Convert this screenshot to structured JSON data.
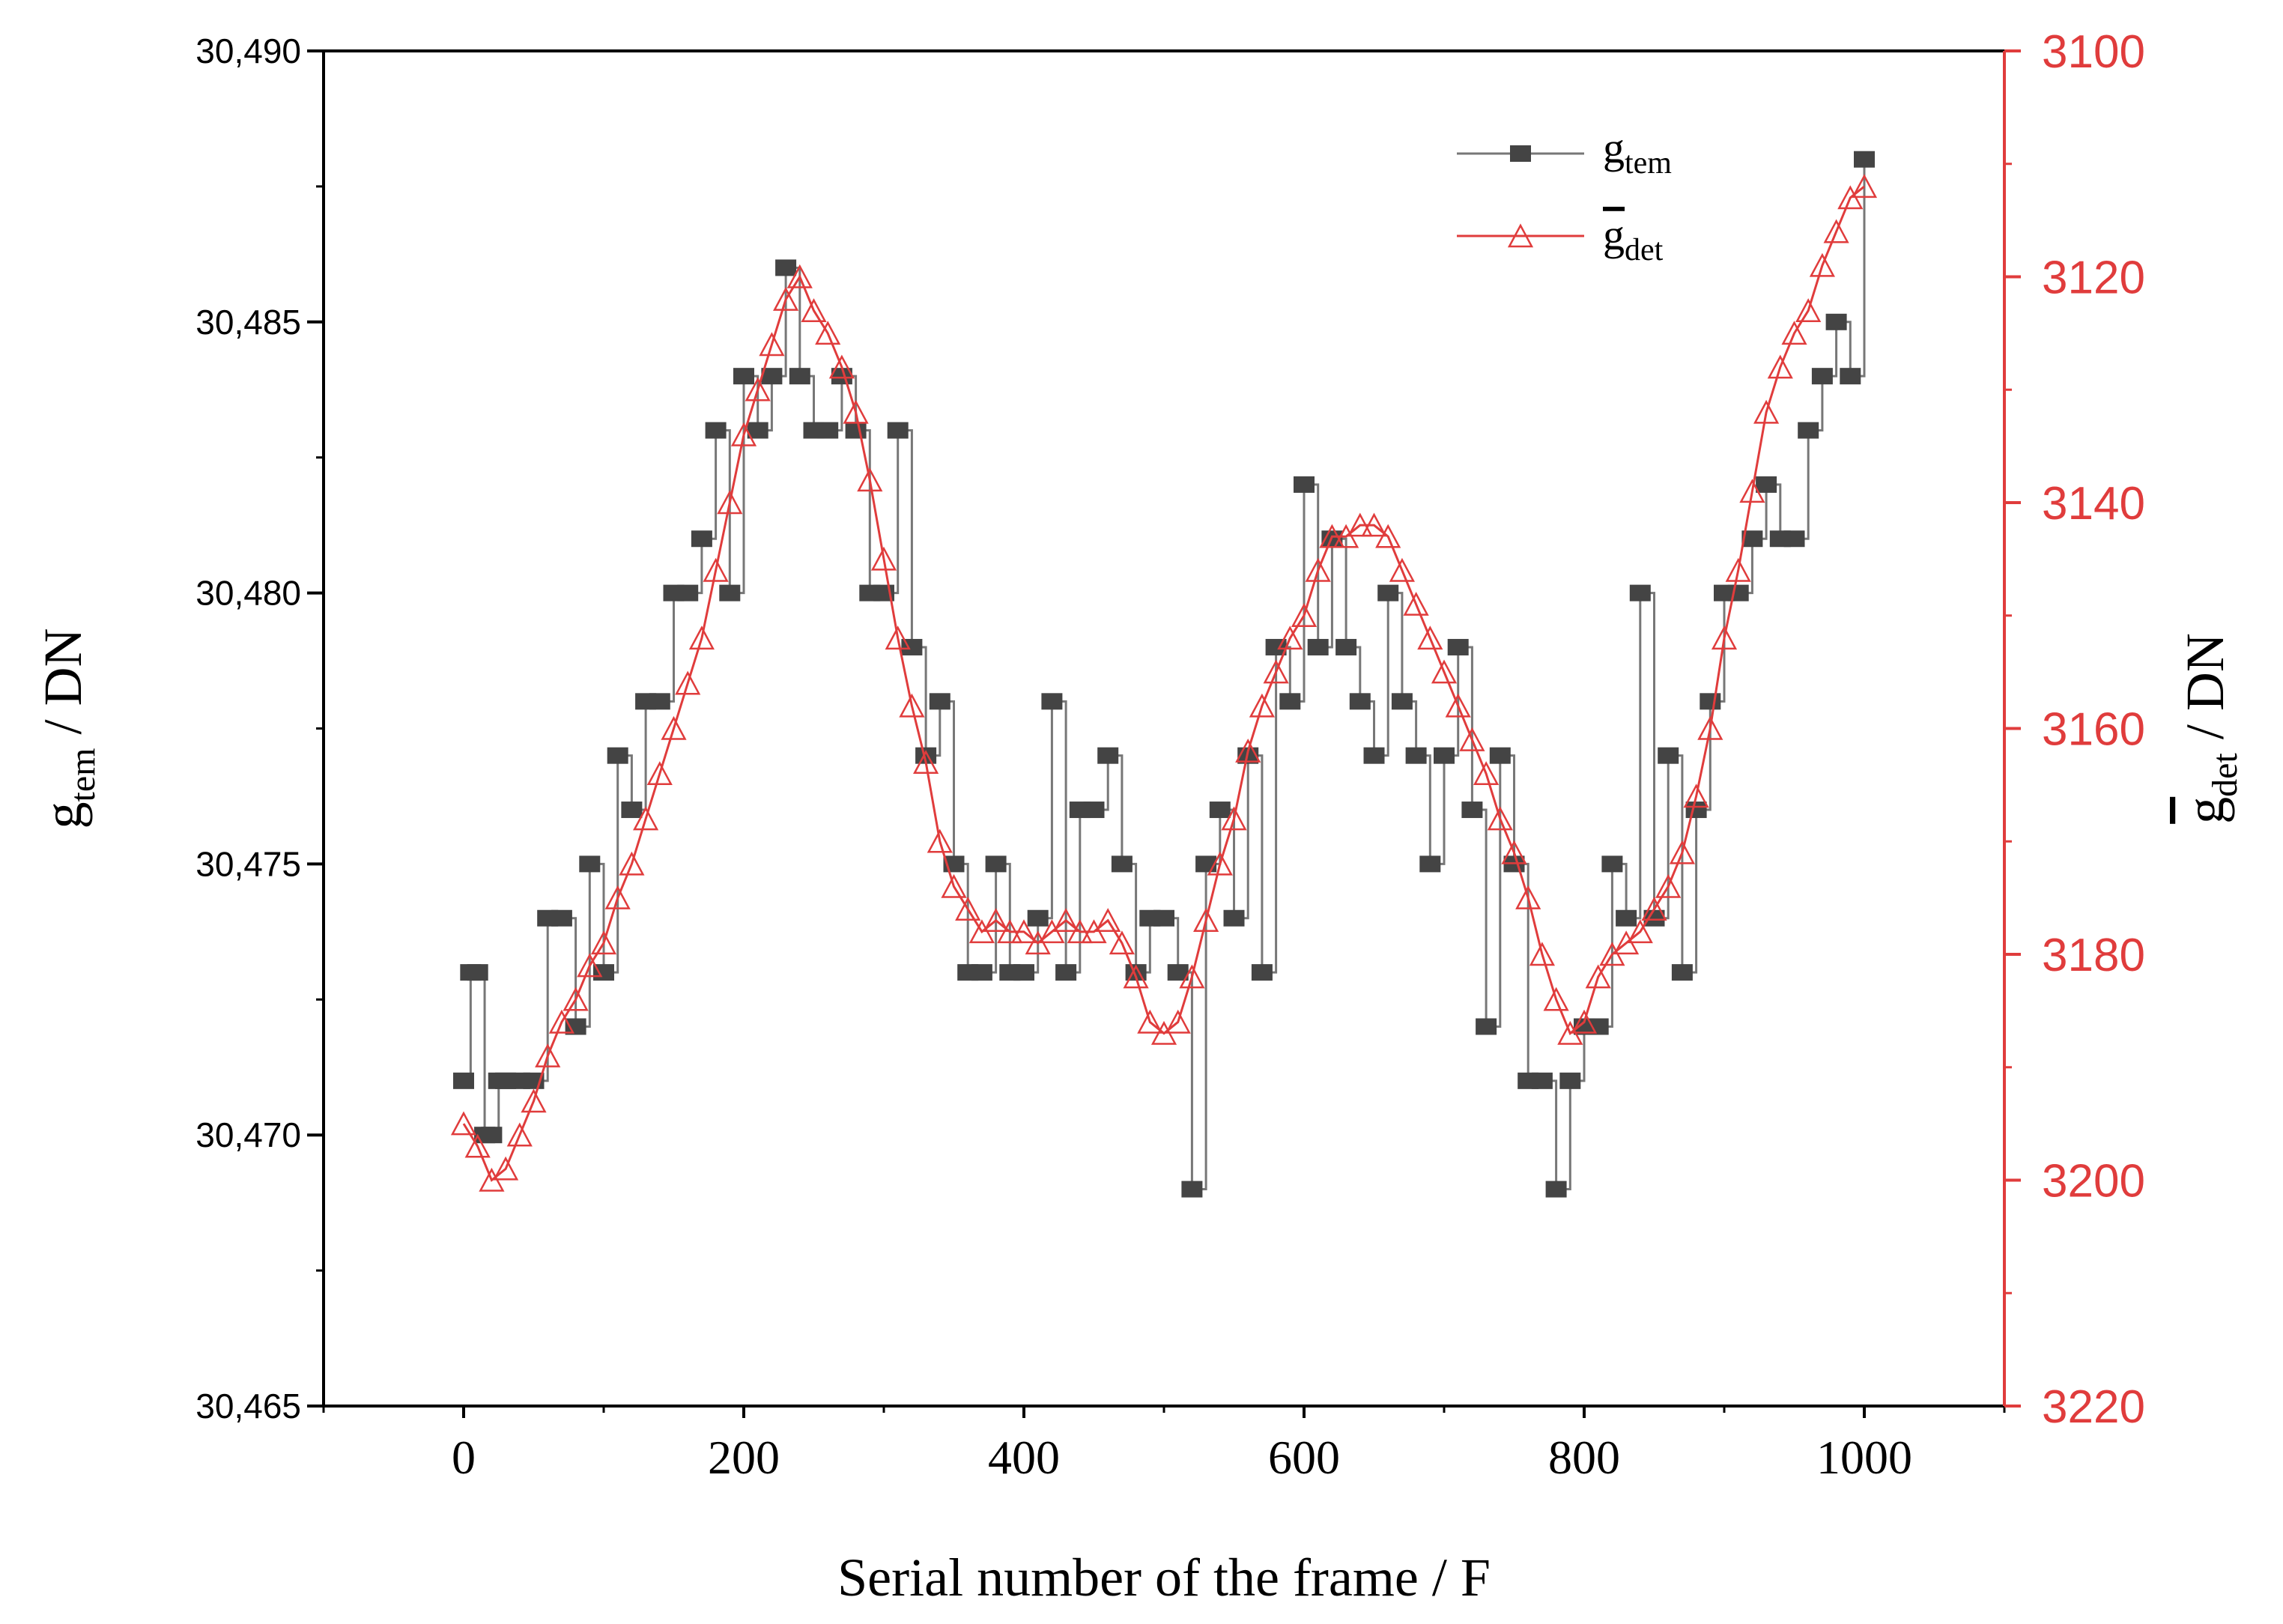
{
  "chart_data": {
    "type": "line",
    "xlabel": "Serial number of the frame / F",
    "xlim": [
      -100,
      1100
    ],
    "xticks": [
      0,
      200,
      400,
      600,
      800,
      1000
    ],
    "xtick_labels": [
      "0",
      "200",
      "400",
      "600",
      "800",
      "1000"
    ],
    "y_left": {
      "label_base": "g",
      "label_sub": "tem",
      "label_suffix": "/ DN",
      "lim": [
        30465,
        30490
      ],
      "ticks": [
        30465,
        30470,
        30475,
        30480,
        30485,
        30490
      ],
      "tick_labels": [
        "30,465",
        "30,470",
        "30,475",
        "30,480",
        "30,485",
        "30,490"
      ],
      "color": "#000000"
    },
    "y_right": {
      "label_base": "g",
      "label_sub": "det",
      "label_suffix": "/ DN",
      "lim": [
        3100,
        3220
      ],
      "inverted": true,
      "ticks": [
        3100,
        3120,
        3140,
        3160,
        3180,
        3200,
        3220
      ],
      "tick_labels": [
        "3100",
        "3120",
        "3140",
        "3160",
        "3180",
        "3200",
        "3220"
      ],
      "color": "#e03c3c"
    },
    "legend_position": "top-right",
    "series": [
      {
        "name_base": "g",
        "name_sub": "tem",
        "axis": "left",
        "marker": "square",
        "color": "#444444",
        "x": [
          0,
          5,
          10,
          15,
          20,
          25,
          30,
          40,
          50,
          60,
          70,
          80,
          90,
          100,
          110,
          120,
          130,
          140,
          150,
          160,
          170,
          180,
          190,
          200,
          210,
          220,
          230,
          240,
          250,
          260,
          270,
          280,
          290,
          300,
          310,
          320,
          330,
          340,
          350,
          360,
          370,
          380,
          390,
          400,
          410,
          420,
          430,
          440,
          450,
          460,
          470,
          480,
          490,
          500,
          510,
          520,
          530,
          540,
          550,
          560,
          570,
          580,
          590,
          600,
          610,
          620,
          630,
          640,
          650,
          660,
          670,
          680,
          690,
          700,
          710,
          720,
          730,
          740,
          750,
          760,
          770,
          780,
          790,
          800,
          810,
          820,
          830,
          840,
          850,
          860,
          870,
          880,
          890,
          900,
          910,
          920,
          930,
          940,
          950,
          960,
          970,
          980,
          990,
          1000
        ],
        "values": [
          30471,
          30473,
          30473,
          30470,
          30470,
          30471,
          30471,
          30471,
          30471,
          30474,
          30474,
          30472,
          30475,
          30473,
          30477,
          30476,
          30478,
          30478,
          30480,
          30480,
          30481,
          30483,
          30480,
          30484,
          30483,
          30484,
          30486,
          30484,
          30483,
          30483,
          30484,
          30483,
          30480,
          30480,
          30483,
          30479,
          30477,
          30478,
          30475,
          30473,
          30473,
          30475,
          30473,
          30473,
          30474,
          30478,
          30473,
          30476,
          30476,
          30477,
          30475,
          30473,
          30474,
          30474,
          30473,
          30469,
          30475,
          30476,
          30474,
          30477,
          30473,
          30479,
          30478,
          30482,
          30479,
          30481,
          30479,
          30478,
          30477,
          30480,
          30478,
          30477,
          30475,
          30477,
          30479,
          30476,
          30472,
          30477,
          30475,
          30471,
          30471,
          30469,
          30471,
          30472,
          30472,
          30475,
          30474,
          30480,
          30474,
          30477,
          30473,
          30476,
          30478,
          30480,
          30480,
          30481,
          30482,
          30481,
          30481,
          30483,
          30484,
          30485,
          30484,
          30488
        ]
      },
      {
        "name_base": "g",
        "name_sub": "det",
        "axis": "right",
        "marker": "open-triangle",
        "color": "#e03c3c",
        "x": [
          0,
          10,
          20,
          30,
          40,
          50,
          60,
          70,
          80,
          90,
          100,
          110,
          120,
          130,
          140,
          150,
          160,
          170,
          180,
          190,
          200,
          210,
          220,
          230,
          240,
          250,
          260,
          270,
          280,
          290,
          300,
          310,
          320,
          330,
          340,
          350,
          360,
          370,
          380,
          390,
          400,
          410,
          420,
          430,
          440,
          450,
          460,
          470,
          480,
          490,
          500,
          510,
          520,
          530,
          540,
          550,
          560,
          570,
          580,
          590,
          600,
          610,
          620,
          630,
          640,
          650,
          660,
          670,
          680,
          690,
          700,
          710,
          720,
          730,
          740,
          750,
          760,
          770,
          780,
          790,
          800,
          810,
          820,
          830,
          840,
          850,
          860,
          870,
          880,
          890,
          900,
          910,
          920,
          930,
          940,
          950,
          960,
          970,
          980,
          990,
          1000
        ],
        "values": [
          3195,
          3197,
          3200,
          3199,
          3196,
          3193,
          3189,
          3186,
          3184,
          3181,
          3179,
          3175,
          3172,
          3168,
          3164,
          3160,
          3156,
          3152,
          3146,
          3140,
          3134,
          3130,
          3126,
          3122,
          3120,
          3123,
          3125,
          3128,
          3132,
          3138,
          3145,
          3152,
          3158,
          3163,
          3170,
          3174,
          3176,
          3178,
          3177,
          3178,
          3178,
          3179,
          3178,
          3177,
          3178,
          3178,
          3177,
          3179,
          3182,
          3186,
          3187,
          3186,
          3182,
          3177,
          3172,
          3168,
          3162,
          3158,
          3155,
          3152,
          3150,
          3146,
          3143,
          3143,
          3142,
          3142,
          3143,
          3146,
          3149,
          3152,
          3155,
          3158,
          3161,
          3164,
          3168,
          3171,
          3175,
          3180,
          3184,
          3187,
          3186,
          3182,
          3180,
          3179,
          3178,
          3176,
          3174,
          3171,
          3166,
          3160,
          3152,
          3146,
          3139,
          3132,
          3128,
          3125,
          3123,
          3119,
          3116,
          3113,
          3112
        ]
      }
    ]
  }
}
